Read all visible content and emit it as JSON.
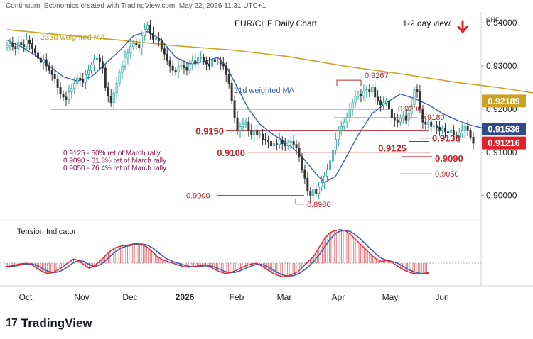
{
  "header": {
    "created_by": "Continuum_Economics created with TradingView.com, May 22, 2026 11:31 UTC+1"
  },
  "footer": {
    "brand": "TradingView",
    "logo_icon": "tradingview-logo-icon"
  },
  "chart_data": {
    "type": "candlestick",
    "title": "EUR/CHF Daily Chart",
    "view_label": "1-2 day view",
    "view_direction": "down-arrow-icon",
    "y_unit": "CHF",
    "y_ticks": [
      0.9,
      0.91,
      0.92,
      0.93,
      0.94
    ],
    "y_tick_labels": [
      "0.90000",
      "0.91000",
      "0.92000",
      "0.93000",
      "0.94000"
    ],
    "y_range": [
      0.8955,
      0.9425
    ],
    "x_tick_labels": [
      "Oct",
      "Nov",
      "Dec",
      "2026",
      "Feb",
      "Mar",
      "Apr",
      "May",
      "Jun"
    ],
    "ma233_label": "233d weighted MA",
    "ma21_label": "21d weighted MA",
    "ma233": [
      [
        0,
        0.9384
      ],
      [
        20,
        0.9372
      ],
      [
        40,
        0.936
      ],
      [
        60,
        0.9347
      ],
      [
        80,
        0.9337
      ],
      [
        100,
        0.9322
      ],
      [
        120,
        0.93
      ],
      [
        140,
        0.9282
      ],
      [
        160,
        0.9262
      ],
      [
        175,
        0.925
      ],
      [
        190,
        0.9235
      ],
      [
        199,
        0.922
      ]
    ],
    "ma21": [
      [
        0,
        0.936
      ],
      [
        5,
        0.9345
      ],
      [
        10,
        0.9325
      ],
      [
        15,
        0.93
      ],
      [
        20,
        0.9275
      ],
      [
        25,
        0.9265
      ],
      [
        30,
        0.9275
      ],
      [
        35,
        0.9305
      ],
      [
        40,
        0.9335
      ],
      [
        45,
        0.937
      ],
      [
        50,
        0.938
      ],
      [
        55,
        0.936
      ],
      [
        60,
        0.932
      ],
      [
        65,
        0.9305
      ],
      [
        70,
        0.931
      ],
      [
        75,
        0.932
      ],
      [
        78,
        0.93
      ],
      [
        82,
        0.925
      ],
      [
        86,
        0.92
      ],
      [
        90,
        0.9165
      ],
      [
        95,
        0.914
      ],
      [
        100,
        0.912
      ],
      [
        105,
        0.909
      ],
      [
        110,
        0.905
      ],
      [
        113,
        0.903
      ],
      [
        117,
        0.9045
      ],
      [
        120,
        0.908
      ],
      [
        125,
        0.914
      ],
      [
        130,
        0.919
      ],
      [
        135,
        0.9215
      ],
      [
        140,
        0.9235
      ],
      [
        145,
        0.9225
      ],
      [
        150,
        0.921
      ],
      [
        155,
        0.919
      ],
      [
        160,
        0.9175
      ],
      [
        165,
        0.9163
      ],
      [
        170,
        0.9155
      ]
    ],
    "closes": [
      0.9348,
      0.9352,
      0.9345,
      0.934,
      0.9355,
      0.935,
      0.9345,
      0.936,
      0.9352,
      0.934,
      0.933,
      0.9318,
      0.9308,
      0.9315,
      0.93,
      0.929,
      0.928,
      0.927,
      0.925,
      0.9235,
      0.9228,
      0.9222,
      0.924,
      0.9248,
      0.926,
      0.9272,
      0.9268,
      0.9262,
      0.928,
      0.929,
      0.9302,
      0.9315,
      0.9318,
      0.931,
      0.9295,
      0.925,
      0.923,
      0.9215,
      0.9238,
      0.926,
      0.9285,
      0.93,
      0.932,
      0.933,
      0.9345,
      0.9352,
      0.935,
      0.9342,
      0.937,
      0.9385,
      0.9395,
      0.9375,
      0.9362,
      0.9365,
      0.9358,
      0.934,
      0.9328,
      0.9312,
      0.93,
      0.929,
      0.9286,
      0.93,
      0.9302,
      0.9296,
      0.929,
      0.9305,
      0.9312,
      0.9305,
      0.932,
      0.932,
      0.931,
      0.9305,
      0.93,
      0.9315,
      0.931,
      0.931,
      0.9305,
      0.93,
      0.928,
      0.926,
      0.922,
      0.918,
      0.915,
      0.916,
      0.9165,
      0.917,
      0.915,
      0.914,
      0.915,
      0.914,
      0.9142,
      0.913,
      0.9128,
      0.9125,
      0.9115,
      0.912,
      0.9118,
      0.9128,
      0.912,
      0.9115,
      0.9122,
      0.9125,
      0.9118,
      0.911,
      0.909,
      0.906,
      0.904,
      0.901,
      0.9,
      0.9015,
      0.9005,
      0.902,
      0.903,
      0.9045,
      0.906,
      0.908,
      0.9105,
      0.913,
      0.915,
      0.916,
      0.917,
      0.918,
      0.92,
      0.9215,
      0.923,
      0.9235,
      0.923,
      0.9242,
      0.9245,
      0.924,
      0.925,
      0.9228,
      0.922,
      0.921,
      0.9215,
      0.9218,
      0.92,
      0.918,
      0.9175,
      0.917,
      0.918,
      0.9185,
      0.9175,
      0.919,
      0.921,
      0.9245,
      0.924,
      0.92,
      0.917,
      0.9165,
      0.917,
      0.916,
      0.9162,
      0.9158,
      0.915,
      0.9155,
      0.9148,
      0.9145,
      0.915,
      0.914,
      0.9135,
      0.9145,
      0.915,
      0.916,
      0.915,
      0.9135,
      0.9121
    ],
    "levels": [
      {
        "label": "0.9267",
        "value": 0.9267
      },
      {
        "label": "0.9200",
        "value": 0.92
      },
      {
        "label": "0.9180",
        "value": 0.918
      },
      {
        "label": "0.9150",
        "value": 0.915
      },
      {
        "label": "0.9133",
        "value": 0.9133
      },
      {
        "label": "0.9125",
        "value": 0.9125
      },
      {
        "label": "0.9100",
        "value": 0.91
      },
      {
        "label": "0.9090",
        "value": 0.909
      },
      {
        "label": "0.9050",
        "value": 0.905
      },
      {
        "label": "0.9000",
        "value": 0.9
      },
      {
        "label": "0.8980",
        "value": 0.898
      }
    ],
    "notes": [
      "0.9125 - 50% ret of March rally",
      "0.9090 - 61.8% ret of March rally",
      "0.9050 - 76.4% ret of March rally"
    ],
    "price_badges": [
      {
        "label": "0.92189",
        "value": 0.92189,
        "color": "#c9a227"
      },
      {
        "label": "0.91536",
        "value": 0.91536,
        "color": "#2f4a8a"
      },
      {
        "label": "0.91216",
        "value": 0.91216,
        "color": "#e0222a"
      }
    ],
    "indicator": {
      "title": "Tension Indicator",
      "values": [
        -0.1,
        -0.08,
        -0.05,
        -0.02,
        0.0,
        -0.05,
        -0.15,
        -0.25,
        -0.3,
        -0.28,
        -0.2,
        -0.1,
        0.02,
        0.12,
        0.08,
        -0.05,
        -0.15,
        -0.08,
        0.05,
        0.2,
        0.35,
        0.45,
        0.5,
        0.52,
        0.55,
        0.58,
        0.55,
        0.48,
        0.35,
        0.2,
        0.1,
        0.05,
        0.0,
        -0.05,
        -0.1,
        -0.12,
        -0.1,
        -0.08,
        -0.05,
        -0.1,
        -0.18,
        -0.25,
        -0.3,
        -0.28,
        -0.22,
        -0.15,
        -0.08,
        -0.03,
        0.0,
        -0.08,
        -0.18,
        -0.28,
        -0.35,
        -0.4,
        -0.38,
        -0.32,
        -0.25,
        -0.1,
        0.05,
        0.2,
        0.45,
        0.7,
        0.88,
        0.95,
        0.98,
        0.95,
        0.85,
        0.7,
        0.55,
        0.4,
        0.25,
        0.12,
        0.05,
        0.08,
        0.02,
        -0.08,
        -0.18,
        -0.25,
        -0.3,
        -0.32,
        -0.3,
        -0.28
      ],
      "colors": {
        "bars": "#e0222a",
        "line_red": "#e0222a",
        "line_blue": "#3a5fb8"
      }
    },
    "colors": {
      "up": "#26a69a",
      "down": "#333333",
      "ma233": "#c9a227",
      "ma21": "#3a5fb8",
      "level_line": "#c0272d",
      "level_text": "#c0272d",
      "note_text": "#8a1550",
      "arrow": "#e0222a"
    }
  }
}
